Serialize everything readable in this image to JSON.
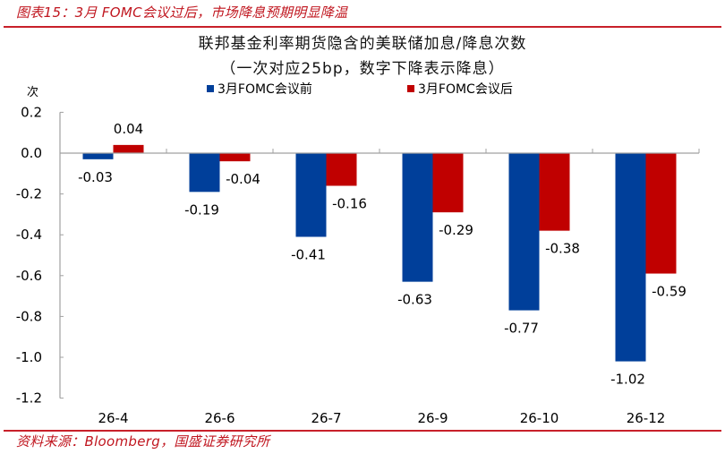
{
  "header": {
    "title": "图表15：3月 FOMC会议过后，市场降息预期明显降温"
  },
  "footer": {
    "source": "资料来源：Bloomberg，国盛证券研究所"
  },
  "colors": {
    "series_before": "#003f9a",
    "series_after": "#c00000",
    "accent_red": "#c0161f",
    "axis": "#a0a0a0"
  },
  "chart_data": {
    "type": "bar",
    "title": "联邦基金利率期货隐含的美联储加息/降息次数",
    "subtitle": "（一次对应25bp，数字下降表示降息）",
    "xlabel": "",
    "ylabel": "次",
    "categories": [
      "26-4",
      "26-6",
      "26-7",
      "26-9",
      "26-10",
      "26-12"
    ],
    "series": [
      {
        "name": "3月FOMC会议前",
        "color": "#003f9a",
        "values": [
          -0.03,
          -0.19,
          -0.41,
          -0.63,
          -0.77,
          -1.02
        ]
      },
      {
        "name": "3月FOMC会议后",
        "color": "#c00000",
        "values": [
          0.04,
          -0.04,
          -0.16,
          -0.29,
          -0.38,
          -0.59
        ]
      }
    ],
    "ylim": [
      -1.2,
      0.2
    ],
    "yticks": [
      "0.2",
      "0.0",
      "-0.2",
      "-0.4",
      "-0.6",
      "-0.8",
      "-1.0",
      "-1.2"
    ],
    "ytick_values": [
      0.2,
      0.0,
      -0.2,
      -0.4,
      -0.6,
      -0.8,
      -1.0,
      -1.2
    ],
    "grid": false,
    "legend_position": "top",
    "data_labels": true
  }
}
